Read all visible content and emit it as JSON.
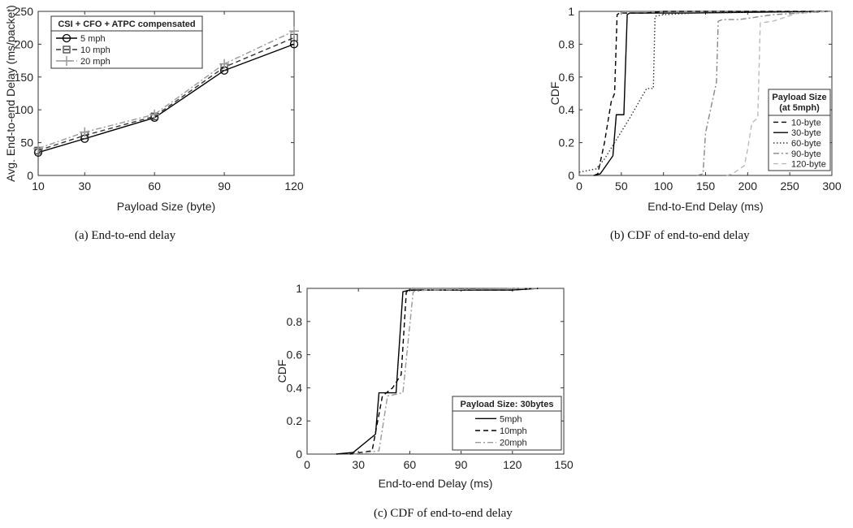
{
  "captions": {
    "a": "(a)  End-to-end delay",
    "b": "(b)  CDF of end-to-end delay",
    "c": "(c)  CDF of end-to-end delay"
  },
  "chart_data": [
    {
      "id": "a",
      "type": "line",
      "xlabel": "Payload Size (byte)",
      "ylabel": "Avg. End-to-end Delay (ms/packet)",
      "xlim": [
        10,
        120
      ],
      "ylim": [
        0,
        250
      ],
      "xticks": [
        10,
        30,
        60,
        90,
        120
      ],
      "yticks": [
        0,
        50,
        100,
        150,
        200,
        250
      ],
      "x": [
        10,
        30,
        60,
        90,
        120
      ],
      "legend": {
        "title": "CSI + CFO + ATPC compensated",
        "placement": "top-left"
      },
      "series": [
        {
          "name": "5 mph",
          "color": "#000000",
          "dash": "",
          "marker": "circle",
          "values": [
            35,
            56,
            88,
            160,
            200
          ]
        },
        {
          "name": "10 mph",
          "color": "#333333",
          "dash": "6,4",
          "marker": "square",
          "values": [
            38,
            61,
            90,
            165,
            210
          ]
        },
        {
          "name": "20 mph",
          "color": "#999999",
          "dash": "7,3,2,3",
          "marker": "plus",
          "values": [
            41,
            66,
            93,
            170,
            220
          ]
        }
      ]
    },
    {
      "id": "b",
      "type": "line",
      "xlabel": "End-to-End Delay (ms)",
      "ylabel": "CDF",
      "xlim": [
        0,
        300
      ],
      "ylim": [
        0,
        1
      ],
      "xticks": [
        0,
        50,
        100,
        150,
        200,
        250,
        300
      ],
      "yticks": [
        0,
        0.2,
        0.4,
        0.6,
        0.8,
        1
      ],
      "legend": {
        "title_lines": [
          "Payload Size",
          "(at 5mph)"
        ],
        "placement": "bottom-right"
      },
      "series": [
        {
          "name": "10-byte",
          "color": "#000000",
          "dash": "6,4",
          "points": [
            [
              18,
              0
            ],
            [
              22,
              0.01
            ],
            [
              30,
              0.2
            ],
            [
              38,
              0.45
            ],
            [
              42,
              0.5
            ],
            [
              45,
              0.98
            ],
            [
              48,
              0.99
            ],
            [
              80,
              0.99
            ],
            [
              100,
              1
            ],
            [
              300,
              1
            ]
          ]
        },
        {
          "name": "30-byte",
          "color": "#000000",
          "dash": "",
          "points": [
            [
              17,
              0
            ],
            [
              25,
              0.01
            ],
            [
              40,
              0.12
            ],
            [
              44,
              0.37
            ],
            [
              53,
              0.37
            ],
            [
              57,
              0.98
            ],
            [
              60,
              0.99
            ],
            [
              130,
              0.99
            ],
            [
              300,
              1
            ]
          ]
        },
        {
          "name": "60-byte",
          "color": "#333333",
          "dash": "1.5,2.5",
          "points": [
            [
              0,
              0.02
            ],
            [
              20,
              0.04
            ],
            [
              30,
              0.1
            ],
            [
              60,
              0.35
            ],
            [
              80,
              0.53
            ],
            [
              88,
              0.53
            ],
            [
              90,
              0.97
            ],
            [
              100,
              0.98
            ],
            [
              140,
              0.99
            ],
            [
              300,
              1
            ]
          ]
        },
        {
          "name": "90-byte",
          "color": "#888888",
          "dash": "7,3,2,3",
          "points": [
            [
              140,
              0
            ],
            [
              147,
              0.01
            ],
            [
              150,
              0.26
            ],
            [
              163,
              0.57
            ],
            [
              165,
              0.94
            ],
            [
              170,
              0.95
            ],
            [
              190,
              0.95
            ],
            [
              230,
              0.98
            ],
            [
              300,
              1
            ]
          ]
        },
        {
          "name": "120-byte",
          "color": "#bbbbbb",
          "dash": "6,4",
          "points": [
            [
              175,
              0
            ],
            [
              182,
              0.01
            ],
            [
              196,
              0.06
            ],
            [
              200,
              0.16
            ],
            [
              205,
              0.32
            ],
            [
              212,
              0.35
            ],
            [
              215,
              0.93
            ],
            [
              230,
              0.94
            ],
            [
              260,
              0.99
            ],
            [
              300,
              1
            ]
          ]
        }
      ]
    },
    {
      "id": "c",
      "type": "line",
      "xlabel": "End-to-end Delay (ms)",
      "ylabel": "CDF",
      "xlim": [
        0,
        150
      ],
      "ylim": [
        0,
        1
      ],
      "xticks": [
        0,
        30,
        60,
        90,
        120,
        150
      ],
      "yticks": [
        0,
        0.2,
        0.4,
        0.6,
        0.8,
        1
      ],
      "legend": {
        "title": "Payload Size: 30bytes",
        "placement": "bottom-right"
      },
      "series": [
        {
          "name": "5mph",
          "color": "#000000",
          "dash": "",
          "points": [
            [
              17,
              0
            ],
            [
              27,
              0.01
            ],
            [
              40,
              0.12
            ],
            [
              42,
              0.37
            ],
            [
              52,
              0.37
            ],
            [
              56,
              0.98
            ],
            [
              60,
              0.99
            ],
            [
              120,
              0.99
            ],
            [
              135,
              1
            ]
          ]
        },
        {
          "name": "10mph",
          "color": "#000000",
          "dash": "6,4",
          "points": [
            [
              25,
              0
            ],
            [
              38,
              0.02
            ],
            [
              44,
              0.35
            ],
            [
              50,
              0.4
            ],
            [
              55,
              0.48
            ],
            [
              58,
              0.98
            ],
            [
              62,
              0.99
            ],
            [
              120,
              0.99
            ],
            [
              135,
              1
            ]
          ]
        },
        {
          "name": "20mph",
          "color": "#999999",
          "dash": "7,3,2,3",
          "points": [
            [
              27,
              0
            ],
            [
              42,
              0.02
            ],
            [
              47,
              0.35
            ],
            [
              56,
              0.37
            ],
            [
              62,
              0.98
            ],
            [
              70,
              0.99
            ],
            [
              130,
              1
            ],
            [
              135,
              1
            ]
          ]
        }
      ]
    }
  ]
}
